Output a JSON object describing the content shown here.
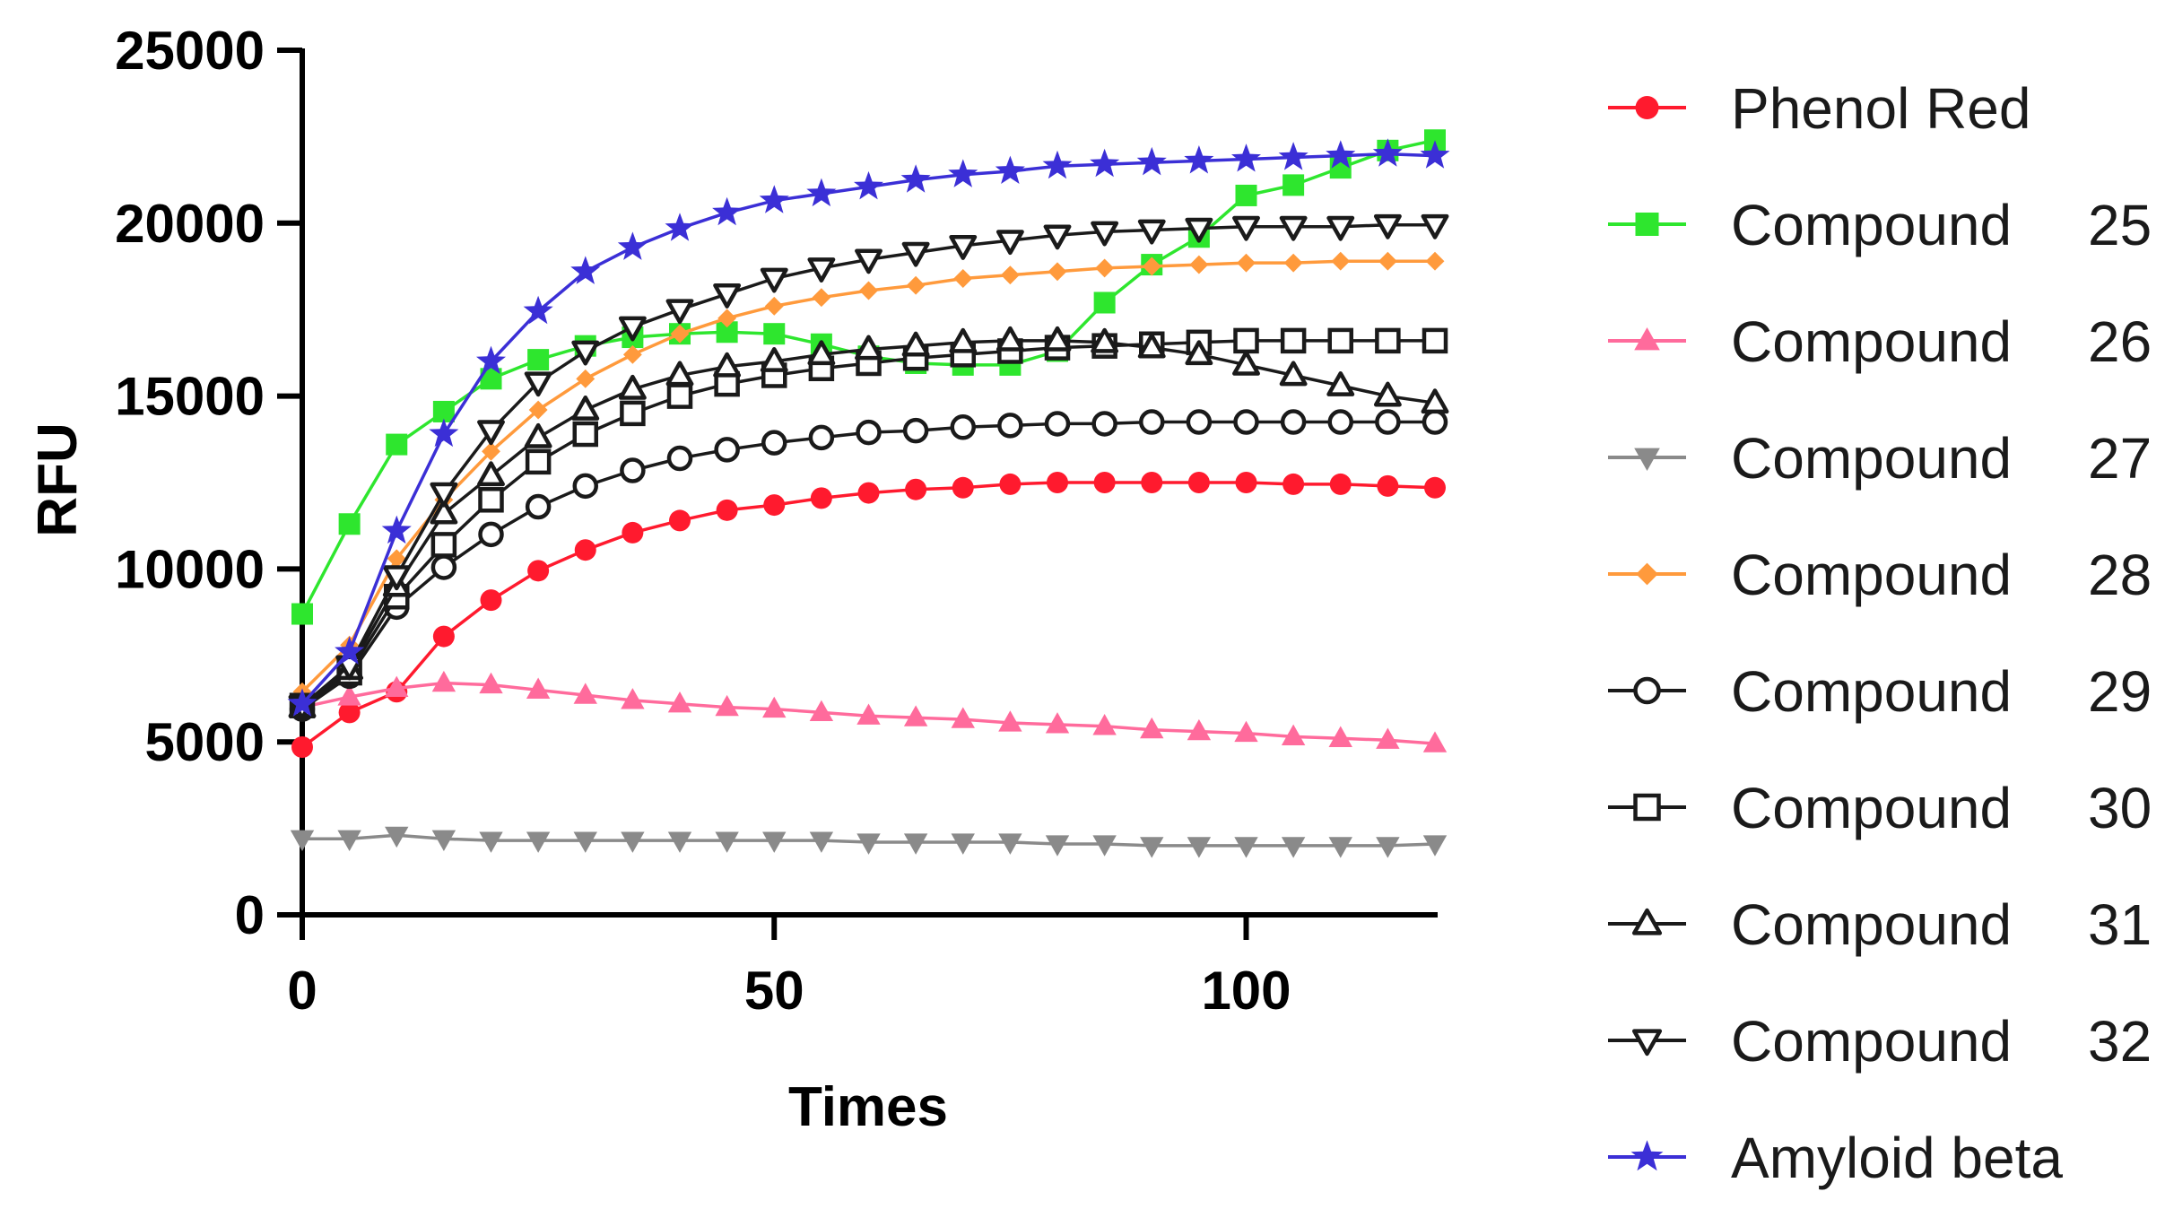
{
  "chart_data": {
    "type": "line",
    "title": "",
    "xlabel": "Times",
    "ylabel": "RFU",
    "xlim": [
      0,
      120
    ],
    "ylim": [
      0,
      25000
    ],
    "xticks": [
      0,
      50,
      100
    ],
    "yticks": [
      0,
      5000,
      10000,
      15000,
      20000,
      25000
    ],
    "xtick_labels": [
      "0",
      "50",
      "100"
    ],
    "ytick_labels": [
      "0",
      "5000",
      "10000",
      "15000",
      "20000",
      "25000"
    ],
    "grid": false,
    "legend_position": "right",
    "x": [
      0,
      5,
      10,
      15,
      20,
      25,
      30,
      35,
      40,
      45,
      50,
      55,
      60,
      65,
      70,
      75,
      80,
      85,
      90,
      95,
      100,
      105,
      110,
      115,
      120
    ],
    "series": [
      {
        "name": "Phenol Red",
        "number": "",
        "color": "#ff1a2e",
        "marker": "circle-filled",
        "values": [
          4850,
          5850,
          6450,
          8050,
          9100,
          9950,
          10550,
          11050,
          11400,
          11700,
          11850,
          12050,
          12200,
          12300,
          12350,
          12450,
          12500,
          12500,
          12500,
          12500,
          12500,
          12450,
          12450,
          12400,
          12350
        ]
      },
      {
        "name": "Compound",
        "number": "25",
        "color": "#2ee62e",
        "marker": "square-filled",
        "values": [
          8700,
          11300,
          13600,
          14550,
          15500,
          16050,
          16450,
          16700,
          16800,
          16850,
          16800,
          16500,
          16150,
          15950,
          15900,
          15900,
          16300,
          17700,
          18800,
          19600,
          20800,
          21100,
          21600,
          22100,
          22400
        ]
      },
      {
        "name": "Compound",
        "number": "26",
        "color": "#ff6b9c",
        "marker": "triangle-up-filled",
        "values": [
          6000,
          6300,
          6550,
          6700,
          6650,
          6500,
          6350,
          6200,
          6100,
          6000,
          5950,
          5850,
          5750,
          5700,
          5650,
          5550,
          5500,
          5450,
          5350,
          5300,
          5250,
          5150,
          5100,
          5050,
          4950
        ]
      },
      {
        "name": "Compound",
        "number": "27",
        "color": "#8a8a8a",
        "marker": "triangle-down-filled",
        "values": [
          2200,
          2200,
          2300,
          2200,
          2150,
          2150,
          2150,
          2150,
          2150,
          2150,
          2150,
          2150,
          2100,
          2100,
          2100,
          2100,
          2050,
          2050,
          2000,
          2000,
          2000,
          2000,
          2000,
          2000,
          2050
        ]
      },
      {
        "name": "Compound",
        "number": "28",
        "color": "#ff9a3c",
        "marker": "diamond-filled",
        "values": [
          6450,
          7800,
          10300,
          12000,
          13400,
          14600,
          15500,
          16200,
          16800,
          17250,
          17600,
          17850,
          18050,
          18200,
          18400,
          18500,
          18600,
          18700,
          18750,
          18800,
          18850,
          18850,
          18900,
          18900,
          18900
        ]
      },
      {
        "name": "Compound",
        "number": "29",
        "color": "#1a1a1a",
        "marker": "circle-open",
        "values": [
          5950,
          6900,
          8900,
          10050,
          11000,
          11800,
          12400,
          12850,
          13200,
          13450,
          13650,
          13800,
          13950,
          14000,
          14100,
          14150,
          14200,
          14200,
          14250,
          14250,
          14250,
          14250,
          14250,
          14250,
          14250
        ]
      },
      {
        "name": "Compound",
        "number": "30",
        "color": "#1a1a1a",
        "marker": "square-open",
        "values": [
          6050,
          7000,
          9200,
          10700,
          12000,
          13100,
          13900,
          14500,
          15000,
          15350,
          15600,
          15800,
          15950,
          16100,
          16200,
          16300,
          16400,
          16450,
          16500,
          16550,
          16600,
          16600,
          16600,
          16600,
          16600
        ]
      },
      {
        "name": "Compound",
        "number": "31",
        "color": "#1a1a1a",
        "marker": "triangle-up-open",
        "values": [
          6000,
          7100,
          9500,
          11600,
          12700,
          13800,
          14600,
          15200,
          15600,
          15850,
          16000,
          16200,
          16350,
          16450,
          16550,
          16600,
          16600,
          16550,
          16400,
          16200,
          15900,
          15600,
          15300,
          15000,
          14800
        ]
      },
      {
        "name": "Compound",
        "number": "32",
        "color": "#1a1a1a",
        "marker": "triangle-down-open",
        "values": [
          6050,
          7200,
          9800,
          12200,
          14000,
          15400,
          16300,
          17000,
          17500,
          17950,
          18400,
          18700,
          18950,
          19150,
          19350,
          19500,
          19650,
          19750,
          19800,
          19850,
          19900,
          19900,
          19900,
          19950,
          19950
        ]
      },
      {
        "name": "Amyloid beta",
        "number": "",
        "color": "#3b2fd6",
        "marker": "star-filled",
        "values": [
          6100,
          7600,
          11100,
          13900,
          16000,
          17450,
          18600,
          19300,
          19850,
          20300,
          20650,
          20850,
          21050,
          21250,
          21400,
          21500,
          21650,
          21700,
          21750,
          21800,
          21850,
          21900,
          21950,
          22000,
          21950
        ]
      }
    ]
  }
}
